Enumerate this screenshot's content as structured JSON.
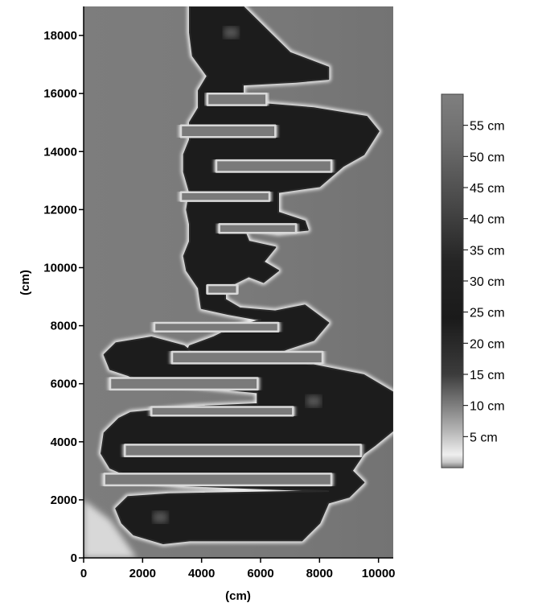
{
  "chart_data": {
    "type": "heatmap",
    "title": "",
    "xlabel": "(cm)",
    "ylabel": "(cm)",
    "xlim": [
      0,
      10500
    ],
    "ylim": [
      0,
      19000
    ],
    "x_ticks": [
      0,
      2000,
      4000,
      6000,
      8000,
      10000
    ],
    "x_tick_labels": [
      "0",
      "2000",
      "4000",
      "6000",
      "8000",
      "10000"
    ],
    "y_ticks": [
      0,
      2000,
      4000,
      6000,
      8000,
      10000,
      12000,
      14000,
      16000,
      18000
    ],
    "y_tick_labels": [
      "0",
      "2000",
      "4000",
      "6000",
      "8000",
      "10000",
      "12000",
      "14000",
      "16000",
      "18000"
    ],
    "grid": false,
    "colorbar": {
      "range": [
        0,
        60
      ],
      "unit": "cm",
      "ticks": [
        5,
        10,
        15,
        20,
        25,
        30,
        35,
        40,
        45,
        50,
        55
      ],
      "tick_labels": [
        "5 cm",
        "10 cm",
        "15 cm",
        "20 cm",
        "25 cm",
        "30 cm",
        "35 cm",
        "40 cm",
        "45 cm",
        "50 cm",
        "55 cm"
      ]
    },
    "background_value": 45,
    "channel_value": 20,
    "rim_value": 3,
    "regions": [
      {
        "name": "top-block",
        "points": [
          [
            3600,
            19000
          ],
          [
            5400,
            19000
          ],
          [
            6200,
            18200
          ],
          [
            7000,
            17400
          ],
          [
            8300,
            16900
          ],
          [
            8300,
            16500
          ],
          [
            7200,
            16400
          ],
          [
            5400,
            16300
          ],
          [
            5400,
            15700
          ],
          [
            7800,
            15500
          ],
          [
            9600,
            15200
          ],
          [
            10000,
            14700
          ],
          [
            9500,
            13900
          ],
          [
            8800,
            13500
          ],
          [
            8000,
            12800
          ],
          [
            6600,
            12600
          ],
          [
            6600,
            11900
          ],
          [
            7500,
            11600
          ],
          [
            7600,
            11300
          ],
          [
            6600,
            11200
          ],
          [
            5400,
            11400
          ],
          [
            5600,
            10900
          ],
          [
            6500,
            10700
          ],
          [
            6100,
            10200
          ],
          [
            6600,
            9900
          ],
          [
            6100,
            9500
          ],
          [
            5600,
            9700
          ],
          [
            4800,
            9300
          ],
          [
            4800,
            8900
          ],
          [
            5300,
            8600
          ],
          [
            6500,
            8500
          ],
          [
            7500,
            8700
          ],
          [
            8300,
            8100
          ],
          [
            7800,
            7500
          ],
          [
            6900,
            7200
          ],
          [
            6400,
            7000
          ],
          [
            4800,
            6900
          ],
          [
            3900,
            6800
          ],
          [
            3400,
            6900
          ],
          [
            3600,
            7300
          ],
          [
            4400,
            7600
          ],
          [
            5000,
            7900
          ],
          [
            6000,
            8200
          ],
          [
            4900,
            8400
          ],
          [
            4000,
            8600
          ],
          [
            3900,
            9300
          ],
          [
            3500,
            9900
          ],
          [
            3400,
            10400
          ],
          [
            3600,
            10900
          ],
          [
            3600,
            11500
          ],
          [
            3500,
            12000
          ],
          [
            3600,
            12600
          ],
          [
            3400,
            13300
          ],
          [
            3400,
            13900
          ],
          [
            3600,
            14400
          ],
          [
            3600,
            15000
          ],
          [
            3900,
            15500
          ],
          [
            3900,
            16100
          ],
          [
            4200,
            16600
          ],
          [
            3700,
            17300
          ],
          [
            3600,
            18100
          ]
        ]
      },
      {
        "name": "bottom-block",
        "points": [
          [
            700,
            7000
          ],
          [
            1100,
            7400
          ],
          [
            2300,
            7600
          ],
          [
            3400,
            7300
          ],
          [
            3900,
            6900
          ],
          [
            5500,
            6700
          ],
          [
            7500,
            6700
          ],
          [
            9500,
            6300
          ],
          [
            10500,
            5700
          ],
          [
            10500,
            4400
          ],
          [
            9900,
            3900
          ],
          [
            9500,
            3600
          ],
          [
            9100,
            3000
          ],
          [
            9500,
            2600
          ],
          [
            9000,
            2100
          ],
          [
            8300,
            1900
          ],
          [
            8000,
            1200
          ],
          [
            7400,
            600
          ],
          [
            3600,
            600
          ],
          [
            2700,
            500
          ],
          [
            1700,
            800
          ],
          [
            1300,
            1200
          ],
          [
            1100,
            1700
          ],
          [
            1500,
            2100
          ],
          [
            2900,
            2200
          ],
          [
            8300,
            2300
          ],
          [
            3300,
            2500
          ],
          [
            1800,
            2700
          ],
          [
            900,
            3100
          ],
          [
            600,
            3600
          ],
          [
            700,
            4300
          ],
          [
            1200,
            4800
          ],
          [
            1600,
            5000
          ],
          [
            3700,
            5200
          ],
          [
            5900,
            5300
          ],
          [
            5900,
            5700
          ],
          [
            3900,
            5900
          ],
          [
            1900,
            6100
          ],
          [
            1500,
            6300
          ],
          [
            900,
            6500
          ]
        ]
      }
    ],
    "gaps": [
      {
        "name": "slot-1",
        "points": [
          [
            4200,
            16000
          ],
          [
            6200,
            16000
          ],
          [
            6200,
            15600
          ],
          [
            4200,
            15600
          ]
        ]
      },
      {
        "name": "slot-2",
        "points": [
          [
            3300,
            14900
          ],
          [
            6500,
            14900
          ],
          [
            6500,
            14500
          ],
          [
            3300,
            14500
          ]
        ]
      },
      {
        "name": "slot-3",
        "points": [
          [
            4500,
            13700
          ],
          [
            8400,
            13700
          ],
          [
            8400,
            13300
          ],
          [
            4500,
            13300
          ]
        ]
      },
      {
        "name": "slot-4",
        "points": [
          [
            3300,
            12600
          ],
          [
            6300,
            12600
          ],
          [
            6300,
            12300
          ],
          [
            3300,
            12300
          ]
        ]
      },
      {
        "name": "slot-5",
        "points": [
          [
            4600,
            11500
          ],
          [
            7200,
            11500
          ],
          [
            7200,
            11200
          ],
          [
            4600,
            11200
          ]
        ]
      },
      {
        "name": "slot-6",
        "points": [
          [
            4200,
            9400
          ],
          [
            5200,
            9400
          ],
          [
            5200,
            9100
          ],
          [
            4200,
            9100
          ]
        ]
      },
      {
        "name": "slot-7",
        "points": [
          [
            2400,
            8100
          ],
          [
            6600,
            8100
          ],
          [
            6600,
            7800
          ],
          [
            2400,
            7800
          ]
        ]
      },
      {
        "name": "slot-8",
        "points": [
          [
            3000,
            7100
          ],
          [
            8100,
            7100
          ],
          [
            8100,
            6700
          ],
          [
            3000,
            6700
          ]
        ]
      },
      {
        "name": "slot-9",
        "points": [
          [
            900,
            6200
          ],
          [
            5900,
            6200
          ],
          [
            5900,
            5800
          ],
          [
            900,
            5800
          ]
        ]
      },
      {
        "name": "slot-10",
        "points": [
          [
            2300,
            5200
          ],
          [
            7100,
            5200
          ],
          [
            7100,
            4900
          ],
          [
            2300,
            4900
          ]
        ]
      },
      {
        "name": "slot-11",
        "points": [
          [
            1400,
            3900
          ],
          [
            9400,
            3900
          ],
          [
            9400,
            3500
          ],
          [
            1400,
            3500
          ]
        ]
      },
      {
        "name": "slot-12",
        "points": [
          [
            700,
            2900
          ],
          [
            8400,
            2900
          ],
          [
            8400,
            2500
          ],
          [
            700,
            2500
          ]
        ]
      }
    ],
    "hotspots": [
      {
        "name": "top-hotspot",
        "x": 5000,
        "y": 18100,
        "value": 30
      },
      {
        "name": "right-hotspot",
        "x": 7800,
        "y": 5400,
        "value": 30
      },
      {
        "name": "bottom-hotspot",
        "x": 2600,
        "y": 1400,
        "value": 30
      }
    ]
  }
}
